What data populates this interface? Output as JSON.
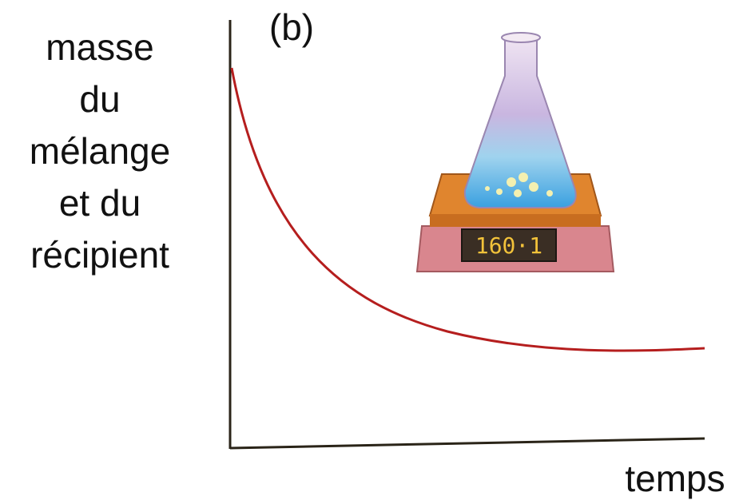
{
  "panel_label": "(b)",
  "y_axis_label": [
    "masse",
    "du",
    "mélange",
    "et du",
    "récipient"
  ],
  "x_axis_label": "temps",
  "scale_display": "160·1"
}
